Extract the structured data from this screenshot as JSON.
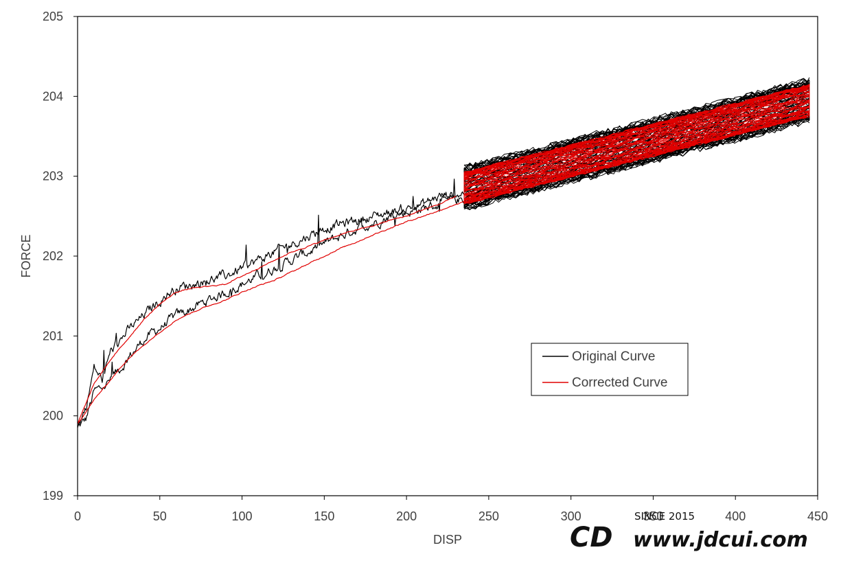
{
  "chart_data": {
    "type": "line",
    "title": "",
    "xlabel": "DISP",
    "ylabel": "FORCE",
    "xlim": [
      0,
      450
    ],
    "ylim": [
      199,
      205
    ],
    "x_ticks": [
      0,
      50,
      100,
      150,
      200,
      250,
      300,
      350,
      400,
      450
    ],
    "y_ticks": [
      199,
      200,
      201,
      202,
      203,
      204,
      205
    ],
    "grid": false,
    "legend_position": "center-right",
    "series": [
      {
        "name": "Original Curve",
        "color": "#000000",
        "description_points": {
          "upper_branch": [
            [
              0,
              199.85
            ],
            [
              5,
              200.1
            ],
            [
              10,
              200.6
            ],
            [
              15,
              200.45
            ],
            [
              20,
              200.8
            ],
            [
              30,
              201.05
            ],
            [
              40,
              201.25
            ],
            [
              50,
              201.45
            ],
            [
              60,
              201.6
            ],
            [
              70,
              201.65
            ],
            [
              80,
              201.7
            ],
            [
              90,
              201.75
            ],
            [
              100,
              201.85
            ],
            [
              110,
              201.95
            ],
            [
              120,
              202.05
            ],
            [
              130,
              202.15
            ],
            [
              140,
              202.25
            ],
            [
              150,
              202.35
            ],
            [
              160,
              202.4
            ],
            [
              170,
              202.45
            ],
            [
              180,
              202.5
            ],
            [
              190,
              202.55
            ],
            [
              200,
              202.6
            ],
            [
              210,
              202.65
            ],
            [
              220,
              202.75
            ],
            [
              230,
              202.78
            ],
            [
              235,
              202.8
            ]
          ],
          "lower_branch": [
            [
              0,
              199.85
            ],
            [
              5,
              199.95
            ],
            [
              10,
              200.3
            ],
            [
              15,
              200.35
            ],
            [
              20,
              200.45
            ],
            [
              30,
              200.7
            ],
            [
              40,
              200.95
            ],
            [
              50,
              201.1
            ],
            [
              60,
              201.25
            ],
            [
              70,
              201.35
            ],
            [
              80,
              201.45
            ],
            [
              90,
              201.55
            ],
            [
              100,
              201.65
            ],
            [
              110,
              201.75
            ],
            [
              120,
              201.85
            ],
            [
              130,
              201.95
            ],
            [
              140,
              202.05
            ],
            [
              150,
              202.15
            ],
            [
              160,
              202.25
            ],
            [
              170,
              202.35
            ],
            [
              180,
              202.42
            ],
            [
              190,
              202.5
            ],
            [
              200,
              202.55
            ],
            [
              210,
              202.6
            ],
            [
              220,
              202.65
            ],
            [
              230,
              202.7
            ],
            [
              235,
              202.72
            ]
          ],
          "band_start": [
            235,
            202.6,
            203.1
          ],
          "band_end": [
            445,
            203.7,
            204.2
          ]
        }
      },
      {
        "name": "Corrected Curve",
        "color": "#e00000",
        "description_points": {
          "upper_branch": [
            [
              0,
              199.9
            ],
            [
              10,
              200.4
            ],
            [
              20,
              200.7
            ],
            [
              30,
              200.95
            ],
            [
              40,
              201.2
            ],
            [
              50,
              201.4
            ],
            [
              60,
              201.55
            ],
            [
              70,
              201.6
            ],
            [
              80,
              201.62
            ],
            [
              90,
              201.65
            ],
            [
              100,
              201.75
            ],
            [
              110,
              201.85
            ],
            [
              120,
              201.95
            ],
            [
              130,
              202.05
            ],
            [
              140,
              202.12
            ],
            [
              150,
              202.2
            ],
            [
              160,
              202.27
            ],
            [
              170,
              202.33
            ],
            [
              180,
              202.38
            ],
            [
              190,
              202.45
            ],
            [
              200,
              202.5
            ],
            [
              210,
              202.58
            ],
            [
              220,
              202.65
            ],
            [
              230,
              202.75
            ]
          ],
          "lower_branch": [
            [
              0,
              199.9
            ],
            [
              10,
              200.2
            ],
            [
              20,
              200.45
            ],
            [
              30,
              200.7
            ],
            [
              40,
              200.88
            ],
            [
              50,
              201.05
            ],
            [
              60,
              201.2
            ],
            [
              70,
              201.3
            ],
            [
              80,
              201.38
            ],
            [
              90,
              201.45
            ],
            [
              100,
              201.55
            ],
            [
              110,
              201.63
            ],
            [
              120,
              201.7
            ],
            [
              130,
              201.8
            ],
            [
              140,
              201.9
            ],
            [
              150,
              202.0
            ],
            [
              160,
              202.1
            ],
            [
              170,
              202.18
            ],
            [
              180,
              202.27
            ],
            [
              190,
              202.35
            ],
            [
              200,
              202.43
            ],
            [
              210,
              202.5
            ],
            [
              220,
              202.57
            ],
            [
              230,
              202.65
            ],
            [
              235,
              202.68
            ]
          ],
          "band_start": [
            235,
            202.65,
            203.05
          ],
          "band_end": [
            445,
            203.75,
            204.15
          ]
        }
      }
    ]
  },
  "watermark": {
    "logo_text": "CD",
    "url": "www.jdcui.com",
    "since": "SINCE 2015"
  }
}
